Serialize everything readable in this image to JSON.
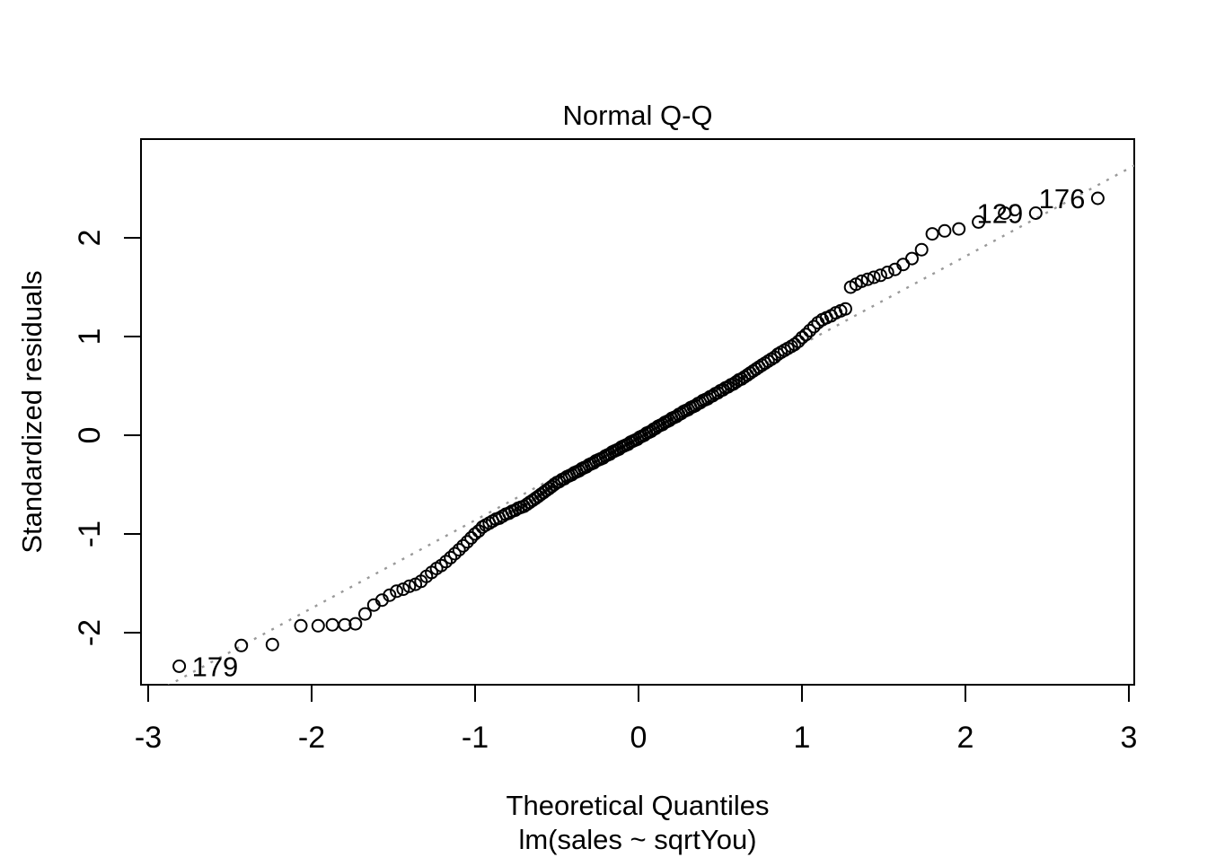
{
  "title": "Normal Q-Q",
  "x_axis": {
    "label": "Theoretical Quantiles",
    "sub_label": "lm(sales ~ sqrtYou)",
    "tick_labels": [
      "-3",
      "-2",
      "-1",
      "0",
      "1",
      "2",
      "3"
    ]
  },
  "y_axis": {
    "label": "Standardized residuals",
    "tick_labels": [
      "-2",
      "-1",
      "0",
      "1",
      "2"
    ]
  },
  "colors": {
    "background": "#ffffff",
    "frame": "#000000",
    "point_stroke": "#000000",
    "text": "#000000",
    "ref_line": "#999999"
  },
  "chart_data": {
    "type": "scatter",
    "title": "Normal Q-Q",
    "xlabel": "Theoretical Quantiles",
    "xlabel_sub": "lm(sales ~ sqrtYou)",
    "ylabel": "Standardized residuals",
    "xlim": [
      -3.044,
      3.033
    ],
    "ylim": [
      -2.527,
      3.0
    ],
    "x_ticks": [
      -3,
      -2,
      -1,
      0,
      1,
      2,
      3
    ],
    "y_ticks": [
      -2,
      -1,
      0,
      1,
      2
    ],
    "grid": false,
    "legend": null,
    "ref_line": {
      "style": "dotted",
      "slope": 0.891,
      "intercept": 0.03,
      "color": "#999999"
    },
    "outlier_labels": [
      {
        "label": "179",
        "x": -2.81,
        "y": -2.34,
        "side": "right"
      },
      {
        "label": "129",
        "x": 2.43,
        "y": 2.25,
        "side": "left"
      },
      {
        "label": "176",
        "x": 2.81,
        "y": 2.4,
        "side": "left"
      }
    ],
    "points": [
      [
        -2.81,
        -2.34
      ],
      [
        -2.43,
        -2.13
      ],
      [
        -2.24,
        -2.12
      ],
      [
        -2.066,
        -1.93
      ],
      [
        -1.96,
        -1.93
      ],
      [
        -1.873,
        -1.92
      ],
      [
        -1.797,
        -1.92
      ],
      [
        -1.732,
        -1.91
      ],
      [
        -1.673,
        -1.81
      ],
      [
        -1.619,
        -1.72
      ],
      [
        -1.569,
        -1.67
      ],
      [
        -1.523,
        -1.62
      ],
      [
        -1.48,
        -1.58
      ],
      [
        -1.44,
        -1.56
      ],
      [
        -1.402,
        -1.53
      ],
      [
        -1.365,
        -1.51
      ],
      [
        -1.331,
        -1.48
      ],
      [
        -1.298,
        -1.43
      ],
      [
        -1.266,
        -1.39
      ],
      [
        -1.236,
        -1.35
      ],
      [
        -1.207,
        -1.32
      ],
      [
        -1.178,
        -1.28
      ],
      [
        -1.15,
        -1.24
      ],
      [
        -1.124,
        -1.2
      ],
      [
        -1.098,
        -1.16
      ],
      [
        -1.073,
        -1.12
      ],
      [
        -1.048,
        -1.08
      ],
      [
        -1.024,
        -1.04
      ],
      [
        -1.001,
        -1.0
      ],
      [
        -0.978,
        -0.97
      ],
      [
        -0.955,
        -0.93
      ],
      [
        -0.935,
        -0.91
      ],
      [
        -0.913,
        -0.89
      ],
      [
        -0.893,
        -0.87
      ],
      [
        -0.872,
        -0.85
      ],
      [
        -0.852,
        -0.84
      ],
      [
        -0.832,
        -0.82
      ],
      [
        -0.812,
        -0.8
      ],
      [
        -0.793,
        -0.79
      ],
      [
        -0.774,
        -0.77
      ],
      [
        -0.755,
        -0.76
      ],
      [
        -0.737,
        -0.74
      ],
      [
        -0.719,
        -0.73
      ],
      [
        -0.701,
        -0.72
      ],
      [
        -0.683,
        -0.7
      ],
      [
        -0.666,
        -0.68
      ],
      [
        -0.648,
        -0.66
      ],
      [
        -0.631,
        -0.64
      ],
      [
        -0.614,
        -0.62
      ],
      [
        -0.598,
        -0.6
      ],
      [
        -0.581,
        -0.58
      ],
      [
        -0.565,
        -0.56
      ],
      [
        -0.548,
        -0.54
      ],
      [
        -0.532,
        -0.52
      ],
      [
        -0.516,
        -0.5
      ],
      [
        -0.5,
        -0.48
      ],
      [
        -0.485,
        -0.47
      ],
      [
        -0.469,
        -0.45
      ],
      [
        -0.454,
        -0.44
      ],
      [
        -0.438,
        -0.42
      ],
      [
        -0.423,
        -0.41
      ],
      [
        -0.408,
        -0.4
      ],
      [
        -0.393,
        -0.38
      ],
      [
        -0.378,
        -0.37
      ],
      [
        -0.363,
        -0.36
      ],
      [
        -0.348,
        -0.34
      ],
      [
        -0.334,
        -0.33
      ],
      [
        -0.319,
        -0.32
      ],
      [
        -0.304,
        -0.3
      ],
      [
        -0.29,
        -0.29
      ],
      [
        -0.275,
        -0.28
      ],
      [
        -0.261,
        -0.26
      ],
      [
        -0.246,
        -0.25
      ],
      [
        -0.232,
        -0.24
      ],
      [
        -0.217,
        -0.23
      ],
      [
        -0.203,
        -0.21
      ],
      [
        -0.189,
        -0.2
      ],
      [
        -0.175,
        -0.19
      ],
      [
        -0.161,
        -0.17
      ],
      [
        -0.147,
        -0.16
      ],
      [
        -0.133,
        -0.15
      ],
      [
        -0.119,
        -0.14
      ],
      [
        -0.105,
        -0.12
      ],
      [
        -0.091,
        -0.11
      ],
      [
        -0.077,
        -0.1
      ],
      [
        -0.063,
        -0.09
      ],
      [
        -0.049,
        -0.07
      ],
      [
        -0.035,
        -0.06
      ],
      [
        -0.021,
        -0.05
      ],
      [
        -0.007,
        -0.04
      ],
      [
        0.007,
        -0.02
      ],
      [
        0.021,
        -0.01
      ],
      [
        0.035,
        0.0
      ],
      [
        0.049,
        0.02
      ],
      [
        0.063,
        0.03
      ],
      [
        0.077,
        0.04
      ],
      [
        0.091,
        0.06
      ],
      [
        0.105,
        0.07
      ],
      [
        0.119,
        0.09
      ],
      [
        0.133,
        0.1
      ],
      [
        0.147,
        0.11
      ],
      [
        0.161,
        0.13
      ],
      [
        0.175,
        0.14
      ],
      [
        0.189,
        0.15
      ],
      [
        0.203,
        0.17
      ],
      [
        0.217,
        0.18
      ],
      [
        0.232,
        0.19
      ],
      [
        0.246,
        0.21
      ],
      [
        0.261,
        0.22
      ],
      [
        0.275,
        0.24
      ],
      [
        0.29,
        0.25
      ],
      [
        0.304,
        0.26
      ],
      [
        0.319,
        0.28
      ],
      [
        0.334,
        0.29
      ],
      [
        0.348,
        0.3
      ],
      [
        0.363,
        0.32
      ],
      [
        0.378,
        0.33
      ],
      [
        0.393,
        0.35
      ],
      [
        0.408,
        0.36
      ],
      [
        0.423,
        0.37
      ],
      [
        0.438,
        0.39
      ],
      [
        0.454,
        0.4
      ],
      [
        0.469,
        0.42
      ],
      [
        0.485,
        0.43
      ],
      [
        0.5,
        0.45
      ],
      [
        0.516,
        0.46
      ],
      [
        0.532,
        0.48
      ],
      [
        0.548,
        0.49
      ],
      [
        0.565,
        0.51
      ],
      [
        0.581,
        0.52
      ],
      [
        0.598,
        0.54
      ],
      [
        0.614,
        0.56
      ],
      [
        0.631,
        0.57
      ],
      [
        0.648,
        0.59
      ],
      [
        0.666,
        0.61
      ],
      [
        0.683,
        0.63
      ],
      [
        0.701,
        0.65
      ],
      [
        0.719,
        0.67
      ],
      [
        0.737,
        0.69
      ],
      [
        0.755,
        0.71
      ],
      [
        0.774,
        0.73
      ],
      [
        0.793,
        0.75
      ],
      [
        0.812,
        0.77
      ],
      [
        0.832,
        0.79
      ],
      [
        0.852,
        0.82
      ],
      [
        0.872,
        0.84
      ],
      [
        0.893,
        0.86
      ],
      [
        0.913,
        0.88
      ],
      [
        0.935,
        0.9
      ],
      [
        0.955,
        0.92
      ],
      [
        0.978,
        0.95
      ],
      [
        1.001,
        0.99
      ],
      [
        1.024,
        1.02
      ],
      [
        1.048,
        1.06
      ],
      [
        1.073,
        1.1
      ],
      [
        1.098,
        1.14
      ],
      [
        1.124,
        1.17
      ],
      [
        1.15,
        1.19
      ],
      [
        1.178,
        1.21
      ],
      [
        1.207,
        1.24
      ],
      [
        1.236,
        1.26
      ],
      [
        1.266,
        1.28
      ],
      [
        1.298,
        1.5
      ],
      [
        1.331,
        1.53
      ],
      [
        1.365,
        1.56
      ],
      [
        1.402,
        1.58
      ],
      [
        1.44,
        1.6
      ],
      [
        1.48,
        1.62
      ],
      [
        1.523,
        1.65
      ],
      [
        1.569,
        1.68
      ],
      [
        1.619,
        1.73
      ],
      [
        1.673,
        1.79
      ],
      [
        1.732,
        1.88
      ],
      [
        1.797,
        2.04
      ],
      [
        1.873,
        2.07
      ],
      [
        1.96,
        2.09
      ],
      [
        2.08,
        2.16
      ],
      [
        2.24,
        2.25
      ],
      [
        2.43,
        2.25
      ],
      [
        2.81,
        2.4
      ]
    ]
  }
}
